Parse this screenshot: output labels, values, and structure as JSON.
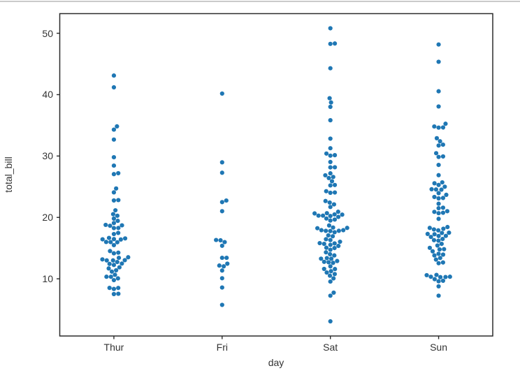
{
  "chart_data": {
    "type": "scatter",
    "variant": "swarmplot",
    "title": "",
    "xlabel": "day",
    "ylabel": "total_bill",
    "categories": [
      "Thur",
      "Fri",
      "Sat",
      "Sun"
    ],
    "yticks": [
      10,
      20,
      30,
      40,
      50
    ],
    "ylim": [
      0.683,
      53.197
    ],
    "grid": false,
    "legend": "none",
    "dot_color": "#1f77b4",
    "spine_color": "#2b2b2b",
    "text_color": "#333333",
    "divider_color": "#cacaca",
    "series": [
      {
        "name": "Thur",
        "values": [
          27.2,
          22.76,
          17.29,
          19.44,
          16.66,
          10.07,
          32.68,
          15.98,
          34.83,
          13.03,
          18.28,
          24.71,
          21.16,
          10.65,
          12.43,
          24.08,
          11.69,
          13.42,
          14.26,
          15.95,
          12.48,
          29.8,
          8.52,
          14.52,
          11.38,
          22.82,
          19.08,
          20.27,
          11.17,
          12.26,
          18.26,
          8.51,
          10.33,
          14.15,
          16.0,
          13.16,
          17.47,
          34.3,
          41.19,
          27.05,
          16.43,
          8.35,
          18.64,
          11.87,
          9.78,
          7.51,
          19.81,
          28.44,
          15.48,
          16.58,
          7.56,
          10.34,
          43.11,
          13.0,
          13.51,
          18.71,
          12.74,
          13.0,
          16.4,
          20.53,
          16.47,
          18.78
        ]
      },
      {
        "name": "Fri",
        "values": [
          28.97,
          22.49,
          5.75,
          16.32,
          22.75,
          40.17,
          27.28,
          12.03,
          21.01,
          12.46,
          11.35,
          15.38,
          12.16,
          13.42,
          8.58,
          15.98,
          13.42,
          16.27,
          10.09
        ]
      },
      {
        "name": "Sat",
        "values": [
          20.65,
          17.92,
          20.29,
          15.77,
          39.42,
          19.82,
          17.81,
          13.37,
          12.69,
          21.7,
          19.65,
          9.55,
          18.35,
          15.06,
          20.69,
          17.78,
          24.06,
          16.31,
          16.93,
          18.69,
          31.27,
          16.04,
          38.01,
          26.41,
          11.24,
          48.27,
          20.29,
          13.81,
          11.02,
          18.29,
          17.59,
          20.08,
          16.45,
          3.07,
          20.23,
          15.01,
          12.02,
          17.07,
          26.86,
          25.28,
          14.73,
          10.51,
          17.92,
          44.3,
          22.42,
          20.92,
          15.36,
          20.49,
          25.21,
          18.24,
          14.31,
          14.0,
          7.25,
          50.81,
          15.81,
          26.59,
          38.73,
          24.27,
          12.76,
          30.06,
          25.89,
          48.33,
          13.27,
          28.17,
          12.9,
          28.15,
          11.59,
          7.74,
          30.14,
          20.45,
          13.28,
          22.12,
          24.01,
          15.69,
          11.61,
          10.77,
          15.53,
          10.07,
          12.6,
          32.83,
          35.83,
          29.03,
          27.18,
          22.67,
          17.82,
          19.49,
          30.4
        ]
      },
      {
        "name": "Sun",
        "values": [
          16.99,
          10.34,
          21.01,
          23.68,
          24.59,
          25.29,
          8.77,
          26.88,
          15.04,
          14.78,
          10.27,
          35.26,
          15.42,
          18.43,
          14.83,
          21.58,
          10.33,
          16.29,
          16.97,
          17.46,
          13.94,
          9.68,
          18.29,
          22.23,
          32.4,
          28.55,
          18.04,
          12.54,
          10.29,
          34.81,
          9.94,
          25.56,
          7.25,
          38.07,
          23.95,
          25.71,
          17.31,
          29.93,
          14.07,
          13.13,
          17.26,
          24.55,
          19.77,
          29.85,
          48.17,
          25.0,
          13.39,
          16.49,
          21.5,
          12.66,
          16.21,
          13.81,
          17.51,
          24.52,
          20.76,
          31.71,
          10.59,
          10.63,
          31.85,
          16.82,
          32.9,
          17.89,
          14.48,
          9.6,
          34.63,
          34.65,
          23.33,
          45.35,
          23.17,
          40.55,
          20.69,
          20.9,
          30.46,
          18.15,
          23.1,
          15.69
        ]
      }
    ]
  }
}
